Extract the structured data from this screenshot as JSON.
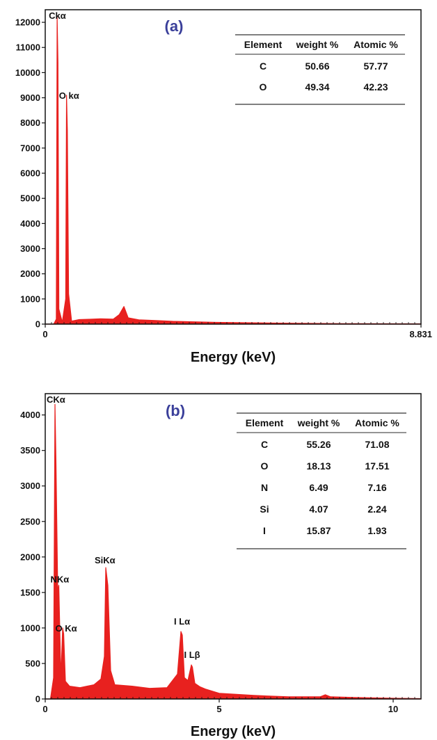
{
  "chart_data": [
    {
      "type": "area",
      "panel_label": "(a)",
      "xlabel": "Energy (keV)",
      "ylabel": "",
      "xlim": [
        0,
        8.831
      ],
      "ylim": [
        0,
        12500
      ],
      "x_ticks": [
        {
          "v": 0,
          "label": "0"
        },
        {
          "v": 8.831,
          "label": "8.831"
        }
      ],
      "y_ticks": [
        0,
        1000,
        2000,
        3000,
        4000,
        5000,
        6000,
        7000,
        8000,
        9000,
        10000,
        11000,
        12000
      ],
      "color": "#e8211f",
      "series": [
        {
          "x": [
            0.0,
            0.2,
            0.26,
            0.28,
            0.3,
            0.32,
            0.4,
            0.48,
            0.5,
            0.52,
            0.55,
            0.62,
            0.8,
            1.0,
            1.3,
            1.6,
            1.74,
            1.85,
            1.95,
            2.2,
            2.6,
            3.0,
            3.5,
            4.0,
            4.5,
            5.0,
            5.5,
            6.0,
            7.0,
            8.0,
            8.831
          ],
          "y": [
            0,
            0,
            200,
            12200,
            10400,
            600,
            80,
            1000,
            9100,
            7700,
            1200,
            120,
            180,
            190,
            210,
            200,
            380,
            700,
            250,
            170,
            140,
            110,
            90,
            70,
            60,
            50,
            40,
            30,
            20,
            15,
            10
          ]
        }
      ],
      "peaks": [
        {
          "label": "Ckα",
          "x": 0.28,
          "y": 12200
        },
        {
          "label": "O kα",
          "x": 0.52,
          "y": 9100
        }
      ],
      "table": {
        "headers": [
          "Element",
          "weight %",
          "Atomic %"
        ],
        "rows": [
          [
            "C",
            "50.66",
            "57.77"
          ],
          [
            "O",
            "49.34",
            "42.23"
          ]
        ]
      }
    },
    {
      "type": "area",
      "panel_label": "(b)",
      "xlabel": "Energy (keV)",
      "ylabel": "",
      "xlim": [
        0,
        10.8
      ],
      "ylim": [
        0,
        4300
      ],
      "x_ticks": [
        {
          "v": 0,
          "label": "0"
        },
        {
          "v": 5,
          "label": "5"
        },
        {
          "v": 10,
          "label": "10"
        }
      ],
      "y_ticks": [
        0,
        500,
        1000,
        1500,
        2000,
        2500,
        3000,
        3500,
        4000
      ],
      "color": "#e8211f",
      "series": [
        {
          "x": [
            0.0,
            0.15,
            0.24,
            0.28,
            0.31,
            0.36,
            0.39,
            0.45,
            0.5,
            0.53,
            0.58,
            0.7,
            1.0,
            1.4,
            1.6,
            1.7,
            1.74,
            1.8,
            1.88,
            2.0,
            2.5,
            3.0,
            3.5,
            3.8,
            3.9,
            3.94,
            4.0,
            4.1,
            4.2,
            4.23,
            4.3,
            4.45,
            4.6,
            5.0,
            6.0,
            7.0,
            7.9,
            8.05,
            8.2,
            9.0,
            10.0,
            10.8
          ],
          "y": [
            0,
            0,
            300,
            4150,
            3300,
            1500,
            1600,
            300,
            1000,
            920,
            250,
            180,
            160,
            200,
            280,
            600,
            1850,
            1600,
            400,
            200,
            180,
            150,
            160,
            350,
            950,
            900,
            300,
            260,
            480,
            450,
            220,
            170,
            140,
            80,
            50,
            30,
            30,
            60,
            30,
            20,
            10,
            5
          ]
        }
      ],
      "peaks": [
        {
          "label": "CKα",
          "x": 0.28,
          "y": 4150
        },
        {
          "label": "NKα",
          "x": 0.39,
          "y": 1600
        },
        {
          "label": "O Kα",
          "x": 0.53,
          "y": 1000
        },
        {
          "label": "SiKα",
          "x": 1.74,
          "y": 1850
        },
        {
          "label": "I Lα",
          "x": 3.94,
          "y": 950
        },
        {
          "label": "I Lβ",
          "x": 4.23,
          "y": 480
        }
      ],
      "table": {
        "headers": [
          "Element",
          "weight %",
          "Atomic %"
        ],
        "rows": [
          [
            "C",
            "55.26",
            "71.08"
          ],
          [
            "O",
            "18.13",
            "17.51"
          ],
          [
            "N",
            "6.49",
            "7.16"
          ],
          [
            "Si",
            "4.07",
            "2.24"
          ],
          [
            "I",
            "15.87",
            "1.93"
          ]
        ]
      }
    }
  ]
}
